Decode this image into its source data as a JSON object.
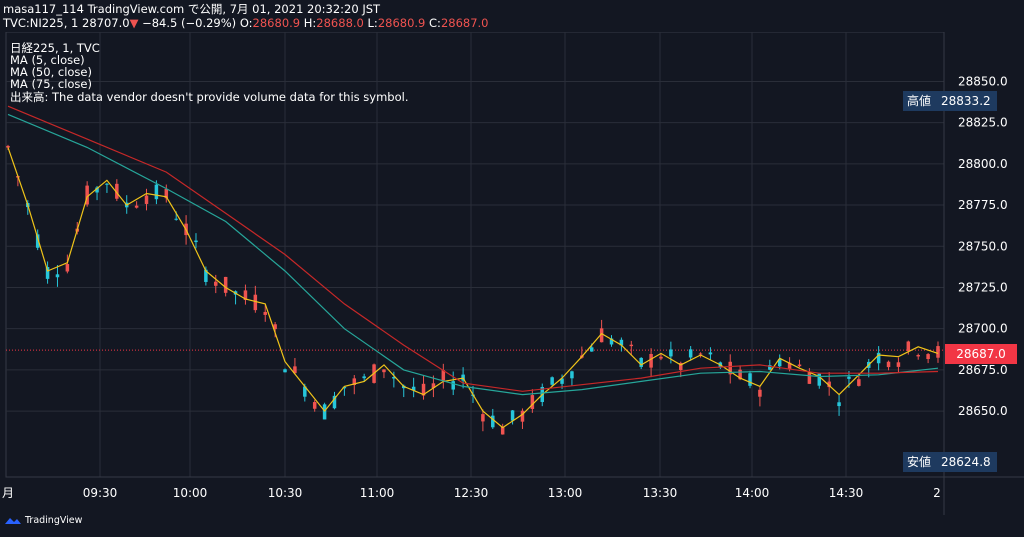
{
  "header": {
    "publisher": "masa117_114 TradingView.com で公開, 7月 01, 2021 20:32:20 JST",
    "symbol": "TVC:NI225, 1",
    "last": "28707.0",
    "change_arrow": "▼",
    "change": "−84.5 (−0.29%)",
    "o_label": "O:",
    "o": "28680.9",
    "h_label": "H:",
    "h": "28688.0",
    "l_label": "L:",
    "l": "28680.9",
    "c_label": "C:",
    "c": "28687.0"
  },
  "legend": {
    "title": "日経225, 1, TVC",
    "ma1": "MA (5, close)",
    "ma2": "MA (50, close)",
    "ma3": "MA (75, close)",
    "volume": "出来高: The data vendor doesn't provide volume data for this symbol."
  },
  "tags": {
    "high_label": "高値",
    "high_value": "28833.2",
    "low_label": "安値",
    "low_value": "28624.8",
    "last_value": "28687.0"
  },
  "footer": {
    "brand": "TradingView"
  },
  "colors": {
    "background": "#131722",
    "up": "#ef5350",
    "down": "#26c6da",
    "ma5": "#f0c419",
    "ma50": "#26a69a",
    "ma75": "#c62828",
    "grid": "#2a2e39"
  },
  "chart_data": {
    "type": "candlestick",
    "x_ticks": [
      "月",
      "09:30",
      "10:00",
      "10:30",
      "11:00",
      "12:30",
      "13:00",
      "13:30",
      "14:00",
      "14:30",
      "2"
    ],
    "y_ticks": [
      28650.0,
      28675.0,
      28700.0,
      28725.0,
      28750.0,
      28775.0,
      28800.0,
      28825.0,
      28850.0
    ],
    "ylim": [
      28610,
      28880
    ],
    "grid": true,
    "series": [
      {
        "name": "MA (5, close)",
        "points": [
          [
            0,
            28810
          ],
          [
            2,
            28775
          ],
          [
            4,
            28735
          ],
          [
            6,
            28740
          ],
          [
            8,
            28780
          ],
          [
            10,
            28790
          ],
          [
            12,
            28775
          ],
          [
            14,
            28782
          ],
          [
            16,
            28780
          ],
          [
            18,
            28760
          ],
          [
            20,
            28735
          ],
          [
            22,
            28725
          ],
          [
            24,
            28718
          ],
          [
            26,
            28715
          ],
          [
            28,
            28680
          ],
          [
            30,
            28665
          ],
          [
            32,
            28650
          ],
          [
            34,
            28665
          ],
          [
            36,
            28668
          ],
          [
            38,
            28678
          ],
          [
            40,
            28665
          ],
          [
            42,
            28660
          ],
          [
            44,
            28668
          ],
          [
            46,
            28670
          ],
          [
            48,
            28650
          ],
          [
            50,
            28640
          ],
          [
            52,
            28648
          ],
          [
            54,
            28660
          ],
          [
            56,
            28670
          ],
          [
            58,
            28683
          ],
          [
            60,
            28697
          ],
          [
            62,
            28690
          ],
          [
            64,
            28678
          ],
          [
            66,
            28685
          ],
          [
            68,
            28678
          ],
          [
            70,
            28684
          ],
          [
            72,
            28678
          ],
          [
            74,
            28670
          ],
          [
            76,
            28665
          ],
          [
            78,
            28682
          ],
          [
            80,
            28676
          ],
          [
            82,
            28671
          ],
          [
            84,
            28660
          ],
          [
            86,
            28672
          ],
          [
            88,
            28684
          ],
          [
            90,
            28683
          ],
          [
            92,
            28689
          ],
          [
            94,
            28685
          ]
        ]
      },
      {
        "name": "MA (50, close)",
        "points": [
          [
            0,
            28830
          ],
          [
            8,
            28810
          ],
          [
            16,
            28785
          ],
          [
            22,
            28765
          ],
          [
            28,
            28735
          ],
          [
            34,
            28700
          ],
          [
            40,
            28675
          ],
          [
            46,
            28665
          ],
          [
            52,
            28660
          ],
          [
            58,
            28663
          ],
          [
            64,
            28668
          ],
          [
            70,
            28673
          ],
          [
            76,
            28674
          ],
          [
            82,
            28671
          ],
          [
            88,
            28672
          ],
          [
            94,
            28676
          ]
        ]
      },
      {
        "name": "MA (75, close)",
        "points": [
          [
            0,
            28835
          ],
          [
            8,
            28815
          ],
          [
            16,
            28795
          ],
          [
            22,
            28770
          ],
          [
            28,
            28745
          ],
          [
            34,
            28715
          ],
          [
            40,
            28690
          ],
          [
            46,
            28667
          ],
          [
            52,
            28662
          ],
          [
            58,
            28666
          ],
          [
            64,
            28670
          ],
          [
            70,
            28676
          ],
          [
            76,
            28678
          ],
          [
            82,
            28673
          ],
          [
            88,
            28673
          ],
          [
            94,
            28674
          ]
        ]
      }
    ]
  }
}
